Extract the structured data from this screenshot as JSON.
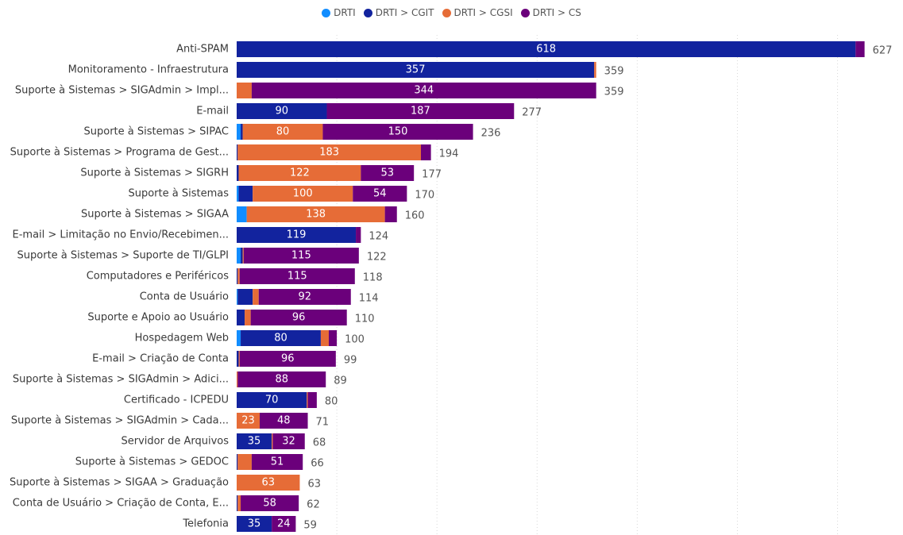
{
  "chart_data": {
    "type": "bar",
    "orientation": "horizontal",
    "stacked": true,
    "legend_position": "top-center",
    "grid": true,
    "xlim": [
      0,
      640
    ],
    "series": [
      {
        "name": "DRTI",
        "color": "#118DFF"
      },
      {
        "name": "DRTI > CGIT",
        "color": "#12239E"
      },
      {
        "name": "DRTI > CGSI",
        "color": "#E66C37"
      },
      {
        "name": "DRTI > CS",
        "color": "#6B007B"
      }
    ],
    "categories": [
      "Anti-SPAM",
      "Monitoramento - Infraestrutura",
      "Suporte à Sistemas > SIGAdmin > Impl...",
      "E-mail",
      "Suporte à Sistemas > SIPAC",
      "Suporte à Sistemas > Programa de Gest...",
      "Suporte à Sistemas > SIGRH",
      "Suporte à Sistemas",
      "Suporte à Sistemas > SIGAA",
      "E-mail > Limitação no Envio/Recebimen...",
      "Suporte à Sistemas > Suporte de TI/GLPI",
      "Computadores e Periféricos",
      "Conta de Usuário",
      "Suporte e Apoio ao Usuário",
      "Hospedagem Web",
      "E-mail > Criação de Conta",
      "Suporte à Sistemas > SIGAdmin > Adici...",
      "Certificado - ICPEDU",
      "Suporte à Sistemas > SIGAdmin > Cada...",
      "Servidor de Arquivos",
      "Suporte à Sistemas > GEDOC",
      "Suporte à Sistemas > SIGAA > Graduação",
      "Conta de Usuário > Criação de Conta, E...",
      "Telefonia"
    ],
    "values": [
      [
        0,
        618,
        0,
        9
      ],
      [
        0,
        357,
        2,
        0
      ],
      [
        0,
        0,
        15,
        344
      ],
      [
        0,
        90,
        0,
        187
      ],
      [
        4,
        2,
        80,
        150
      ],
      [
        0,
        1,
        183,
        10
      ],
      [
        0,
        2,
        122,
        53
      ],
      [
        2,
        14,
        100,
        54
      ],
      [
        10,
        0,
        138,
        12
      ],
      [
        0,
        119,
        0,
        5
      ],
      [
        4,
        2,
        1,
        115
      ],
      [
        0,
        1,
        2,
        115
      ],
      [
        1,
        15,
        6,
        92
      ],
      [
        0,
        8,
        6,
        96
      ],
      [
        4,
        80,
        8,
        8
      ],
      [
        0,
        2,
        1,
        96
      ],
      [
        0,
        0,
        1,
        88
      ],
      [
        0,
        70,
        1,
        9
      ],
      [
        0,
        0,
        23,
        48
      ],
      [
        0,
        35,
        1,
        32
      ],
      [
        0,
        1,
        14,
        51
      ],
      [
        0,
        0,
        63,
        0
      ],
      [
        0,
        1,
        3,
        58
      ],
      [
        0,
        35,
        0,
        24
      ]
    ],
    "segment_labels": [
      [
        "",
        "618",
        "",
        ""
      ],
      [
        "",
        "357",
        "",
        ""
      ],
      [
        "",
        "",
        "",
        "344"
      ],
      [
        "",
        "90",
        "",
        "187"
      ],
      [
        "",
        "",
        "80",
        "150"
      ],
      [
        "",
        "",
        "183",
        ""
      ],
      [
        "",
        "",
        "122",
        "53"
      ],
      [
        "",
        "",
        "100",
        "54"
      ],
      [
        "",
        "",
        "138",
        ""
      ],
      [
        "",
        "119",
        "",
        ""
      ],
      [
        "",
        "",
        "",
        "115"
      ],
      [
        "",
        "",
        "",
        "115"
      ],
      [
        "",
        "",
        "",
        "92"
      ],
      [
        "",
        "",
        "",
        "96"
      ],
      [
        "",
        "80",
        "",
        ""
      ],
      [
        "",
        "",
        "",
        "96"
      ],
      [
        "",
        "",
        "",
        "88"
      ],
      [
        "",
        "70",
        "",
        ""
      ],
      [
        "",
        "",
        "23",
        "48"
      ],
      [
        "",
        "35",
        "",
        "32"
      ],
      [
        "",
        "",
        "",
        "51"
      ],
      [
        "",
        "",
        "63",
        ""
      ],
      [
        "",
        "",
        "",
        "58"
      ],
      [
        "",
        "35",
        "",
        "24"
      ]
    ],
    "totals": [
      627,
      359,
      359,
      277,
      236,
      194,
      177,
      170,
      160,
      124,
      122,
      118,
      114,
      110,
      100,
      99,
      89,
      80,
      71,
      68,
      66,
      63,
      62,
      59
    ]
  }
}
